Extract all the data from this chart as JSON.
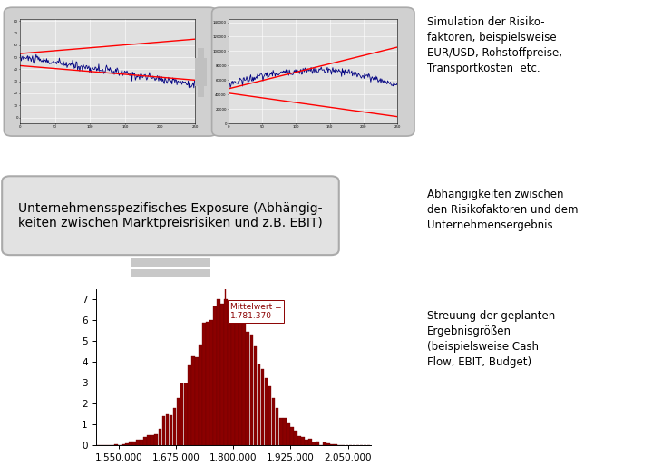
{
  "bg_color": "#ffffff",
  "annotation_text_right1": "Simulation der Risiko-\nfaktoren, beispielsweise\nEUR/USD, Rohstoffpreise,\nTransportkosten  etc.",
  "annotation_text_right2": "Abhängigkeiten zwischen\nden Risikofaktoren und dem\nUnternehmensergebnis",
  "annotation_text_right3": "Streuung der geplanten\nErgebnisgrößen\n(beispielsweise Cash\nFlow, EBIT, Budget)",
  "box1_text": "Unternehmensspezifisches Exposure (Abhängig-\nkeiten zwischen Marktpreisrisiken und z.B. EBIT)",
  "hist_mean": 1781370,
  "hist_std": 70000,
  "hist_xlim": [
    1500000,
    2100000
  ],
  "hist_xticks": [
    1550000,
    1675000,
    1800000,
    1925000,
    2050000
  ],
  "hist_xtick_labels": [
    "1.550.000",
    "1.675.000",
    "1.800.000",
    "1.925.000",
    "2.050.000"
  ],
  "hist_ylim": [
    0,
    7.5
  ],
  "hist_yticks": [
    0,
    1,
    2,
    3,
    4,
    5,
    6,
    7
  ],
  "hist_bar_color": "#8B0000",
  "hist_bar_edge": "#6a0000",
  "mittelwert_label": "Mittelwert =\n1.781.370",
  "box_fill": "#d8d8d8",
  "box_edge": "#aaaaaa",
  "chart_bg": "#e0e0e0",
  "chart_grid_color": "#ffffff",
  "plus_color": "#c0c0c0",
  "eq_color": "#c8c8c8"
}
